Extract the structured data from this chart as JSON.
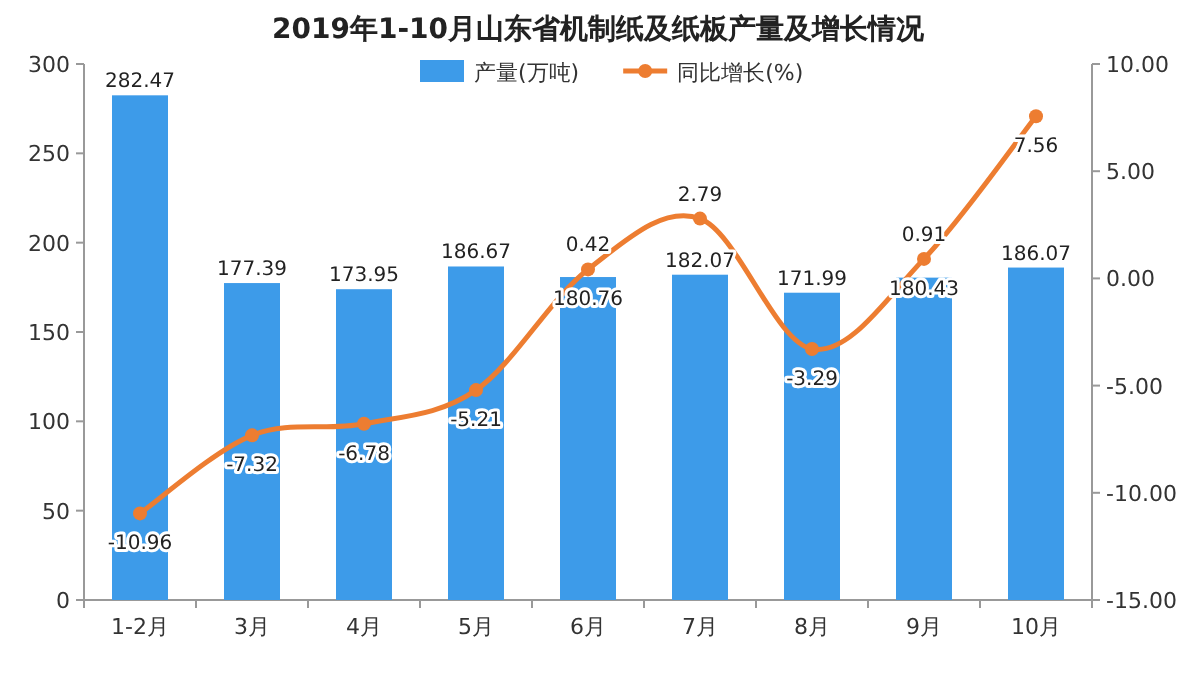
{
  "chart_data": {
    "type": "bar",
    "title": "2019年1-10月山东省机制纸及纸板产量及增长情况",
    "categories": [
      "1-2月",
      "3月",
      "4月",
      "5月",
      "6月",
      "7月",
      "8月",
      "9月",
      "10月"
    ],
    "series": [
      {
        "name": "产量(万吨)",
        "color": "#3d9be9",
        "values": [
          282.47,
          177.39,
          173.95,
          186.67,
          180.76,
          182.07,
          171.99,
          180.43,
          186.07
        ]
      },
      {
        "name": "同比增长(%)",
        "type": "line",
        "axis": "y2",
        "color": "#ed7d31",
        "marker": "circle",
        "values": [
          -10.96,
          -7.32,
          -6.78,
          -5.21,
          0.42,
          2.79,
          -3.29,
          0.91,
          7.56
        ]
      }
    ],
    "ylim": [
      0,
      300
    ],
    "yticks": [
      0,
      50,
      100,
      150,
      200,
      250,
      300
    ],
    "y2lim": [
      -15,
      10
    ],
    "y2ticks": [
      {
        "value": -15,
        "label": "-15.00"
      },
      {
        "value": -10,
        "label": "-10.00"
      },
      {
        "value": -5,
        "label": "-5.00"
      },
      {
        "value": 0,
        "label": "0.00"
      },
      {
        "value": 5,
        "label": "5.00"
      },
      {
        "value": 10,
        "label": "10.00"
      }
    ],
    "data_labels": true,
    "legend": "top"
  }
}
